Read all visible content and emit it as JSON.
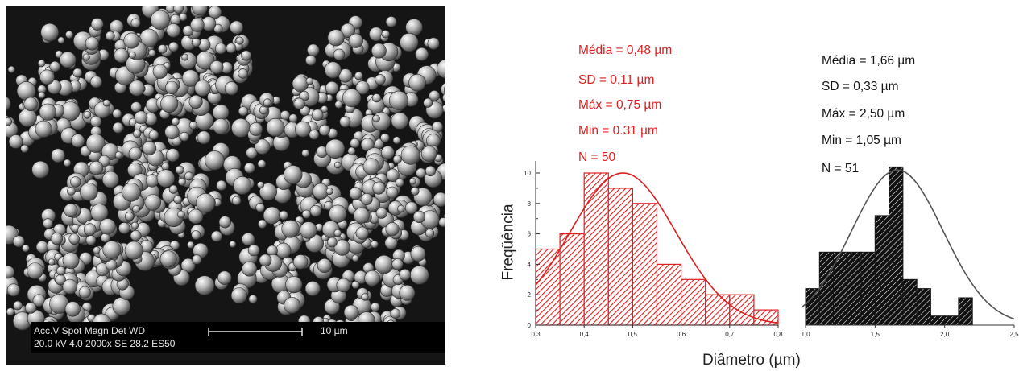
{
  "sem": {
    "line1": "Acc.V   Spot  Magn      Det   WD",
    "line2": "20.0 kV  4.0   2000x    SE    28.2  ES50",
    "scale": "10 µm"
  },
  "stats_red": [
    "Média = 0,48 µm",
    "SD = 0,11 µm",
    "Máx = 0,75 µm",
    "Min = 0.31 µm",
    "N = 50"
  ],
  "stats_black": [
    "Média = 1,66 µm",
    "SD = 0,33 µm",
    "Máx = 2,50 µm",
    "Min = 1,05 µm",
    "N = 51"
  ],
  "colors": {
    "red": "#dd1f1f",
    "black": "#141414",
    "gray_curve": "#555555"
  },
  "chart_data": {
    "type": "bar",
    "xlabel": "Diâmetro (µm)",
    "ylabel": "Freqüência",
    "ylim": [
      0,
      10.5
    ],
    "y_ticks": [
      0,
      2,
      4,
      6,
      8,
      10
    ],
    "left_panel": {
      "xlim": [
        0.3,
        0.8
      ],
      "x_ticks": [
        "0,3",
        "0,4",
        "0,5",
        "0,6",
        "0,7",
        "0,8"
      ],
      "bin_width": 0.05,
      "bins": [
        {
          "x": 0.3,
          "value": 5
        },
        {
          "x": 0.35,
          "value": 6
        },
        {
          "x": 0.4,
          "value": 10
        },
        {
          "x": 0.45,
          "value": 9
        },
        {
          "x": 0.5,
          "value": 8
        },
        {
          "x": 0.55,
          "value": 4
        },
        {
          "x": 0.6,
          "value": 3
        },
        {
          "x": 0.65,
          "value": 2
        },
        {
          "x": 0.7,
          "value": 2
        },
        {
          "x": 0.75,
          "value": 1
        }
      ],
      "fit": {
        "mean": 0.48,
        "sd": 0.11,
        "peak": 10
      }
    },
    "right_panel": {
      "xlim": [
        1.0,
        2.5
      ],
      "x_ticks": [
        "1,0",
        "1,5",
        "2,0",
        "2,5"
      ],
      "bin_width": 0.1,
      "bins": [
        {
          "x": 1.0,
          "value": 2.4
        },
        {
          "x": 1.1,
          "value": 4.8
        },
        {
          "x": 1.2,
          "value": 4.8
        },
        {
          "x": 1.3,
          "value": 4.8
        },
        {
          "x": 1.4,
          "value": 4.8
        },
        {
          "x": 1.5,
          "value": 7.2
        },
        {
          "x": 1.6,
          "value": 10.4
        },
        {
          "x": 1.7,
          "value": 3.0
        },
        {
          "x": 1.8,
          "value": 2.4
        },
        {
          "x": 1.9,
          "value": 0.6
        },
        {
          "x": 2.0,
          "value": 0.6
        },
        {
          "x": 2.1,
          "value": 1.8
        }
      ],
      "fit": {
        "mean": 1.66,
        "sd": 0.33,
        "peak": 10.2
      }
    }
  }
}
